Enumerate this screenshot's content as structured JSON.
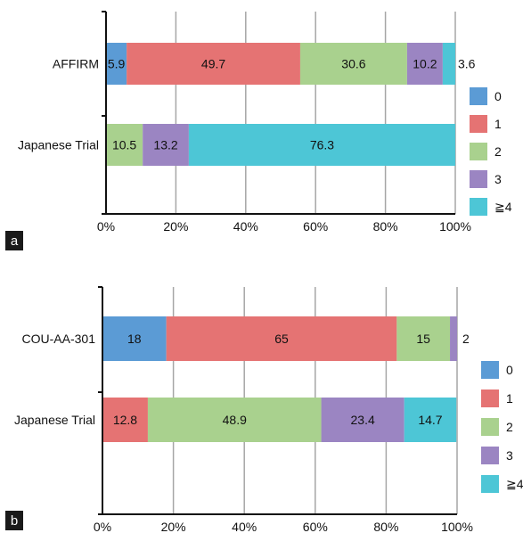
{
  "colors": {
    "0": "#5b9bd5",
    "1": "#e57373",
    "2": "#a9d18e",
    "3": "#9b85c2",
    "4": "#4dc6d6",
    "grid": "#a6a6a6",
    "axis": "#111111"
  },
  "chart_data": [
    {
      "panel_label": "a",
      "type": "bar",
      "orientation": "horizontal",
      "stacked": "percent",
      "categories": [
        "AFFIRM",
        "Japanese Trial"
      ],
      "series": [
        {
          "name": "0",
          "values": [
            5.9,
            0
          ]
        },
        {
          "name": "1",
          "values": [
            49.7,
            0
          ]
        },
        {
          "name": "2",
          "values": [
            30.6,
            10.5
          ]
        },
        {
          "name": "3",
          "values": [
            10.2,
            13.2
          ]
        },
        {
          "name": "≧4",
          "values": [
            3.6,
            76.3
          ]
        }
      ],
      "xticks": [
        "0%",
        "20%",
        "40%",
        "60%",
        "80%",
        "100%"
      ],
      "xlim": [
        0,
        100
      ],
      "grid": "vertical",
      "legend_position": "right",
      "data_labels": [
        [
          "5.9",
          "49.7",
          "30.6",
          "10.2",
          "3.6"
        ],
        [
          "",
          "",
          "10.5",
          "13.2",
          "76.3"
        ]
      ]
    },
    {
      "panel_label": "b",
      "type": "bar",
      "orientation": "horizontal",
      "stacked": "percent",
      "categories": [
        "COU-AA-301",
        "Japanese Trial"
      ],
      "series": [
        {
          "name": "0",
          "values": [
            18,
            0
          ]
        },
        {
          "name": "1",
          "values": [
            65,
            12.8
          ]
        },
        {
          "name": "2",
          "values": [
            15,
            48.9
          ]
        },
        {
          "name": "3",
          "values": [
            2,
            23.4
          ]
        },
        {
          "name": "≧4",
          "values": [
            0,
            14.7
          ]
        }
      ],
      "xticks": [
        "0%",
        "20%",
        "40%",
        "60%",
        "80%",
        "100%"
      ],
      "xlim": [
        0,
        100
      ],
      "grid": "vertical",
      "legend_position": "right",
      "data_labels": [
        [
          "18",
          "65",
          "15",
          "2",
          ""
        ],
        [
          "",
          "12.8",
          "48.9",
          "23.4",
          "14.7"
        ]
      ]
    }
  ]
}
